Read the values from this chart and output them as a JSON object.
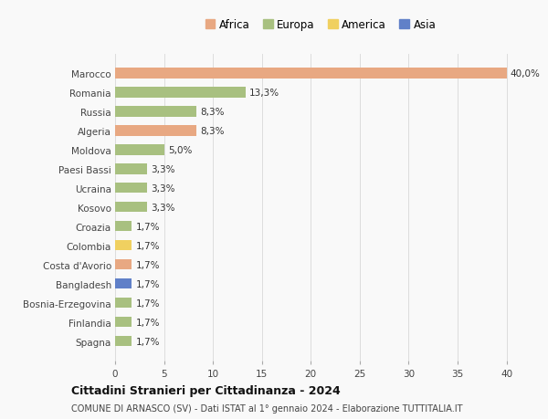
{
  "countries": [
    "Marocco",
    "Romania",
    "Russia",
    "Algeria",
    "Moldova",
    "Paesi Bassi",
    "Ucraina",
    "Kosovo",
    "Croazia",
    "Colombia",
    "Costa d'Avorio",
    "Bangladesh",
    "Bosnia-Erzegovina",
    "Finlandia",
    "Spagna"
  ],
  "values": [
    40.0,
    13.3,
    8.3,
    8.3,
    5.0,
    3.3,
    3.3,
    3.3,
    1.7,
    1.7,
    1.7,
    1.7,
    1.7,
    1.7,
    1.7
  ],
  "labels": [
    "40,0%",
    "13,3%",
    "8,3%",
    "8,3%",
    "5,0%",
    "3,3%",
    "3,3%",
    "3,3%",
    "1,7%",
    "1,7%",
    "1,7%",
    "1,7%",
    "1,7%",
    "1,7%",
    "1,7%"
  ],
  "continents": [
    "Africa",
    "Europa",
    "Europa",
    "Africa",
    "Europa",
    "Europa",
    "Europa",
    "Europa",
    "Europa",
    "America",
    "Africa",
    "Asia",
    "Europa",
    "Europa",
    "Europa"
  ],
  "continent_colors": {
    "Africa": "#E8A882",
    "Europa": "#A8C080",
    "America": "#F0D060",
    "Asia": "#6080C8"
  },
  "legend_order": [
    "Africa",
    "Europa",
    "America",
    "Asia"
  ],
  "title1": "Cittadini Stranieri per Cittadinanza - 2024",
  "title2": "COMUNE DI ARNASCO (SV) - Dati ISTAT al 1° gennaio 2024 - Elaborazione TUTTITALIA.IT",
  "xlim_max": 42,
  "xticks": [
    0,
    5,
    10,
    15,
    20,
    25,
    30,
    35,
    40
  ],
  "background_color": "#f9f9f9",
  "grid_color": "#dddddd",
  "bar_height": 0.55,
  "label_fontsize": 7.5,
  "ytick_fontsize": 7.5,
  "xtick_fontsize": 7.5,
  "legend_fontsize": 8.5,
  "title1_fontsize": 9,
  "title2_fontsize": 7
}
